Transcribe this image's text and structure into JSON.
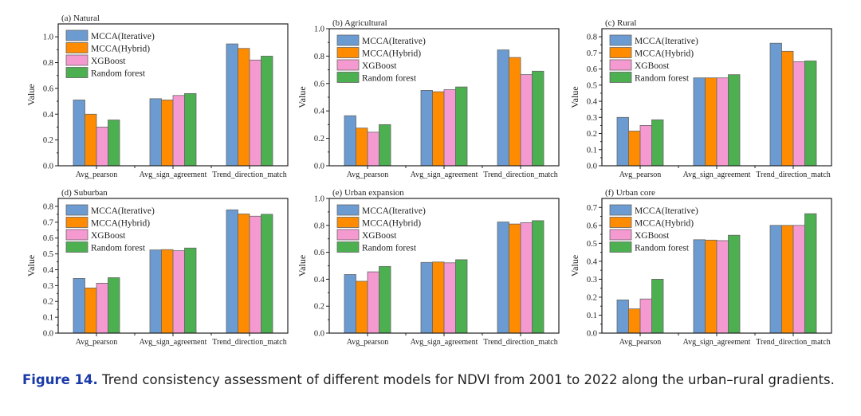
{
  "figure": {
    "caption_label": "Figure 14.",
    "caption_text": " Trend consistency assessment of different models for NDVI from 2001 to 2022 along the urban–rural gradients."
  },
  "colors": {
    "MCCA(Iterative)": "#6b9bd0",
    "MCCA(Hybrid)": "#ff8c00",
    "XGBoost": "#f59ad0",
    "Random forest": "#4caf50"
  },
  "chart_data": [
    {
      "type": "bar",
      "title": "(a) Natural",
      "xlabel": "",
      "ylabel": "Value",
      "ylim": [
        0,
        1.1
      ],
      "yticks": [
        0.0,
        0.2,
        0.4,
        0.6,
        0.8,
        1.0
      ],
      "ytick_labels": [
        "0.0",
        "0.2",
        "0.4",
        "0.6",
        "0.8",
        "1.0"
      ],
      "categories": [
        "Avg_pearson",
        "Avg_sign_agreement",
        "Trend_direction_match"
      ],
      "legend": "top-left",
      "grid": false,
      "series": [
        {
          "name": "MCCA(Iterative)",
          "values": [
            0.51,
            0.52,
            0.945
          ]
        },
        {
          "name": "MCCA(Hybrid)",
          "values": [
            0.4,
            0.51,
            0.91
          ]
        },
        {
          "name": "XGBoost",
          "values": [
            0.3,
            0.545,
            0.82
          ]
        },
        {
          "name": "Random forest",
          "values": [
            0.355,
            0.56,
            0.85
          ]
        }
      ]
    },
    {
      "type": "bar",
      "title": "(b) Agricultural",
      "xlabel": "",
      "ylabel": "Value",
      "ylim": [
        0,
        1.0
      ],
      "yticks": [
        0.0,
        0.2,
        0.4,
        0.6,
        0.8,
        1.0
      ],
      "ytick_labels": [
        "0.0",
        "0.2",
        "0.4",
        "0.6",
        "0.8",
        "1.0"
      ],
      "categories": [
        "Avg_pearson",
        "Avg_sign_agreement",
        "Trend_direction_match"
      ],
      "legend": "top-left",
      "grid": false,
      "series": [
        {
          "name": "MCCA(Iterative)",
          "values": [
            0.365,
            0.55,
            0.845
          ]
        },
        {
          "name": "MCCA(Hybrid)",
          "values": [
            0.275,
            0.54,
            0.79
          ]
        },
        {
          "name": "XGBoost",
          "values": [
            0.245,
            0.555,
            0.665
          ]
        },
        {
          "name": "Random forest",
          "values": [
            0.3,
            0.575,
            0.69
          ]
        }
      ]
    },
    {
      "type": "bar",
      "title": "(c) Rural",
      "xlabel": "",
      "ylabel": "Value",
      "ylim": [
        0,
        0.85
      ],
      "yticks": [
        0.0,
        0.1,
        0.2,
        0.3,
        0.4,
        0.5,
        0.6,
        0.7,
        0.8
      ],
      "ytick_labels": [
        "0.0",
        "0.1",
        "0.2",
        "0.3",
        "0.4",
        "0.5",
        "0.6",
        "0.7",
        "0.8"
      ],
      "categories": [
        "Avg_pearson",
        "Avg_sign_agreement",
        "Trend_direction_match"
      ],
      "legend": "top-left",
      "grid": false,
      "series": [
        {
          "name": "MCCA(Iterative)",
          "values": [
            0.3,
            0.545,
            0.76
          ]
        },
        {
          "name": "MCCA(Hybrid)",
          "values": [
            0.215,
            0.545,
            0.71
          ]
        },
        {
          "name": "XGBoost",
          "values": [
            0.25,
            0.545,
            0.645
          ]
        },
        {
          "name": "Random forest",
          "values": [
            0.285,
            0.565,
            0.65
          ]
        }
      ]
    },
    {
      "type": "bar",
      "title": "(d) Suburban",
      "xlabel": "",
      "ylabel": "Value",
      "ylim": [
        0,
        0.85
      ],
      "yticks": [
        0.0,
        0.1,
        0.2,
        0.3,
        0.4,
        0.5,
        0.6,
        0.7,
        0.8
      ],
      "ytick_labels": [
        "0.0",
        "0.1",
        "0.2",
        "0.3",
        "0.4",
        "0.5",
        "0.6",
        "0.7",
        "0.8"
      ],
      "categories": [
        "Avg_pearson",
        "Avg_sign_agreement",
        "Trend_direction_match"
      ],
      "legend": "top-left",
      "grid": false,
      "series": [
        {
          "name": "MCCA(Iterative)",
          "values": [
            0.345,
            0.525,
            0.778
          ]
        },
        {
          "name": "MCCA(Hybrid)",
          "values": [
            0.285,
            0.527,
            0.752
          ]
        },
        {
          "name": "XGBoost",
          "values": [
            0.315,
            0.52,
            0.738
          ]
        },
        {
          "name": "Random forest",
          "values": [
            0.35,
            0.537,
            0.75
          ]
        }
      ]
    },
    {
      "type": "bar",
      "title": "(e) Urban expansion",
      "xlabel": "",
      "ylabel": "Value",
      "ylim": [
        0,
        1.0
      ],
      "yticks": [
        0.0,
        0.2,
        0.4,
        0.6,
        0.8,
        1.0
      ],
      "ytick_labels": [
        "0.0",
        "0.2",
        "0.4",
        "0.6",
        "0.8",
        "1.0"
      ],
      "categories": [
        "Avg_pearson",
        "Avg_sign_agreement",
        "Trend_direction_match"
      ],
      "legend": "top-left",
      "grid": false,
      "series": [
        {
          "name": "MCCA(Iterative)",
          "values": [
            0.435,
            0.525,
            0.825
          ]
        },
        {
          "name": "MCCA(Hybrid)",
          "values": [
            0.385,
            0.528,
            0.81
          ]
        },
        {
          "name": "XGBoost",
          "values": [
            0.455,
            0.522,
            0.82
          ]
        },
        {
          "name": "Random forest",
          "values": [
            0.495,
            0.545,
            0.835
          ]
        }
      ]
    },
    {
      "type": "bar",
      "title": "(f) Urban core",
      "xlabel": "",
      "ylabel": "Value",
      "ylim": [
        0,
        0.75
      ],
      "yticks": [
        0.0,
        0.1,
        0.2,
        0.3,
        0.4,
        0.5,
        0.6,
        0.7
      ],
      "ytick_labels": [
        "0.0",
        "0.1",
        "0.2",
        "0.3",
        "0.4",
        "0.5",
        "0.6",
        "0.7"
      ],
      "categories": [
        "Avg_pearson",
        "Avg_sign_agreement",
        "Trend_direction_match"
      ],
      "legend": "top-left",
      "grid": false,
      "series": [
        {
          "name": "MCCA(Iterative)",
          "values": [
            0.185,
            0.52,
            0.6
          ]
        },
        {
          "name": "MCCA(Hybrid)",
          "values": [
            0.135,
            0.518,
            0.6
          ]
        },
        {
          "name": "XGBoost",
          "values": [
            0.19,
            0.515,
            0.6
          ]
        },
        {
          "name": "Random forest",
          "values": [
            0.3,
            0.545,
            0.665
          ]
        }
      ]
    }
  ]
}
